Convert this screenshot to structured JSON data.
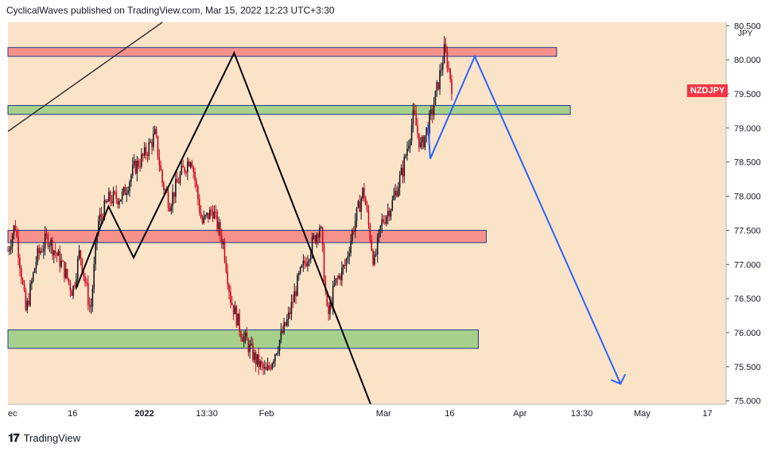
{
  "header": {
    "publish_line": "CyclicalWaves published on TradingView.com, Mar 15, 2022 12:23 UTC+3:30"
  },
  "footer": {
    "brand": "TradingView"
  },
  "colors": {
    "background": "#fbe3c8",
    "resistance_zone": "#f4928b",
    "support_zone": "#a7d08c",
    "candle_up": "#131722",
    "candle_down": "#d0021b",
    "projection_black": "#000000",
    "projection_blue": "#2962ff",
    "symbol_badge": "#f23645"
  },
  "chart_data": {
    "type": "candlestick",
    "symbol": "NZDJPY",
    "currency": "JPY",
    "y_axis": {
      "ticks": [
        "80.500",
        "80.000",
        "79.500",
        "79.000",
        "78.500",
        "78.000",
        "77.500",
        "77.000",
        "76.500",
        "76.000",
        "75.500",
        "75.000"
      ],
      "range": [
        74.95,
        80.55
      ]
    },
    "x_axis": {
      "ticks": [
        "ec",
        "16",
        "2022",
        "13:30",
        "Feb",
        "Mar",
        "16",
        "Apr",
        "13:30",
        "May",
        "17"
      ]
    },
    "zones": [
      {
        "kind": "resistance",
        "low": 80.05,
        "high": 80.18
      },
      {
        "kind": "support",
        "low": 79.2,
        "high": 79.33
      },
      {
        "kind": "resistance",
        "low": 77.32,
        "high": 77.5
      },
      {
        "kind": "support",
        "low": 75.77,
        "high": 76.04
      }
    ],
    "trend_line": {
      "from": {
        "t": 0,
        "price": 78.95
      },
      "to": {
        "t": 0.215,
        "price": 80.55
      }
    },
    "black_projection": [
      {
        "t": 0.095,
        "price": 76.65
      },
      {
        "t": 0.14,
        "price": 77.85
      },
      {
        "t": 0.175,
        "price": 77.1
      },
      {
        "t": 0.315,
        "price": 80.1
      },
      {
        "t": 0.505,
        "price": 74.95
      }
    ],
    "blue_projection": [
      {
        "t": 0.585,
        "price": 79.05
      },
      {
        "t": 0.588,
        "price": 78.55
      },
      {
        "t": 0.65,
        "price": 80.05
      },
      {
        "t": 0.853,
        "price": 75.25
      }
    ],
    "price_path": [
      {
        "t": 0.0,
        "price": 77.2
      },
      {
        "t": 0.01,
        "price": 77.6
      },
      {
        "t": 0.025,
        "price": 76.3
      },
      {
        "t": 0.04,
        "price": 77.1
      },
      {
        "t": 0.055,
        "price": 77.4
      },
      {
        "t": 0.075,
        "price": 77.0
      },
      {
        "t": 0.09,
        "price": 76.6
      },
      {
        "t": 0.1,
        "price": 77.2
      },
      {
        "t": 0.115,
        "price": 76.3
      },
      {
        "t": 0.125,
        "price": 77.6
      },
      {
        "t": 0.14,
        "price": 77.95
      },
      {
        "t": 0.16,
        "price": 78.0
      },
      {
        "t": 0.175,
        "price": 78.4
      },
      {
        "t": 0.19,
        "price": 78.6
      },
      {
        "t": 0.205,
        "price": 78.9
      },
      {
        "t": 0.215,
        "price": 78.2
      },
      {
        "t": 0.225,
        "price": 77.9
      },
      {
        "t": 0.24,
        "price": 78.3
      },
      {
        "t": 0.255,
        "price": 78.6
      },
      {
        "t": 0.27,
        "price": 77.6
      },
      {
        "t": 0.285,
        "price": 77.8
      },
      {
        "t": 0.3,
        "price": 77.3
      },
      {
        "t": 0.31,
        "price": 76.5
      },
      {
        "t": 0.325,
        "price": 76.0
      },
      {
        "t": 0.345,
        "price": 75.6
      },
      {
        "t": 0.36,
        "price": 75.4
      },
      {
        "t": 0.375,
        "price": 75.8
      },
      {
        "t": 0.39,
        "price": 76.2
      },
      {
        "t": 0.405,
        "price": 76.8
      },
      {
        "t": 0.42,
        "price": 77.2
      },
      {
        "t": 0.435,
        "price": 77.6
      },
      {
        "t": 0.445,
        "price": 76.2
      },
      {
        "t": 0.455,
        "price": 76.7
      },
      {
        "t": 0.47,
        "price": 77.0
      },
      {
        "t": 0.48,
        "price": 77.5
      },
      {
        "t": 0.495,
        "price": 78.1
      },
      {
        "t": 0.51,
        "price": 77.0
      },
      {
        "t": 0.52,
        "price": 77.6
      },
      {
        "t": 0.535,
        "price": 77.9
      },
      {
        "t": 0.55,
        "price": 78.4
      },
      {
        "t": 0.565,
        "price": 79.2
      },
      {
        "t": 0.575,
        "price": 78.7
      },
      {
        "t": 0.59,
        "price": 79.2
      },
      {
        "t": 0.6,
        "price": 79.7
      },
      {
        "t": 0.608,
        "price": 80.15
      },
      {
        "t": 0.615,
        "price": 79.8
      },
      {
        "t": 0.62,
        "price": 79.5
      }
    ]
  }
}
